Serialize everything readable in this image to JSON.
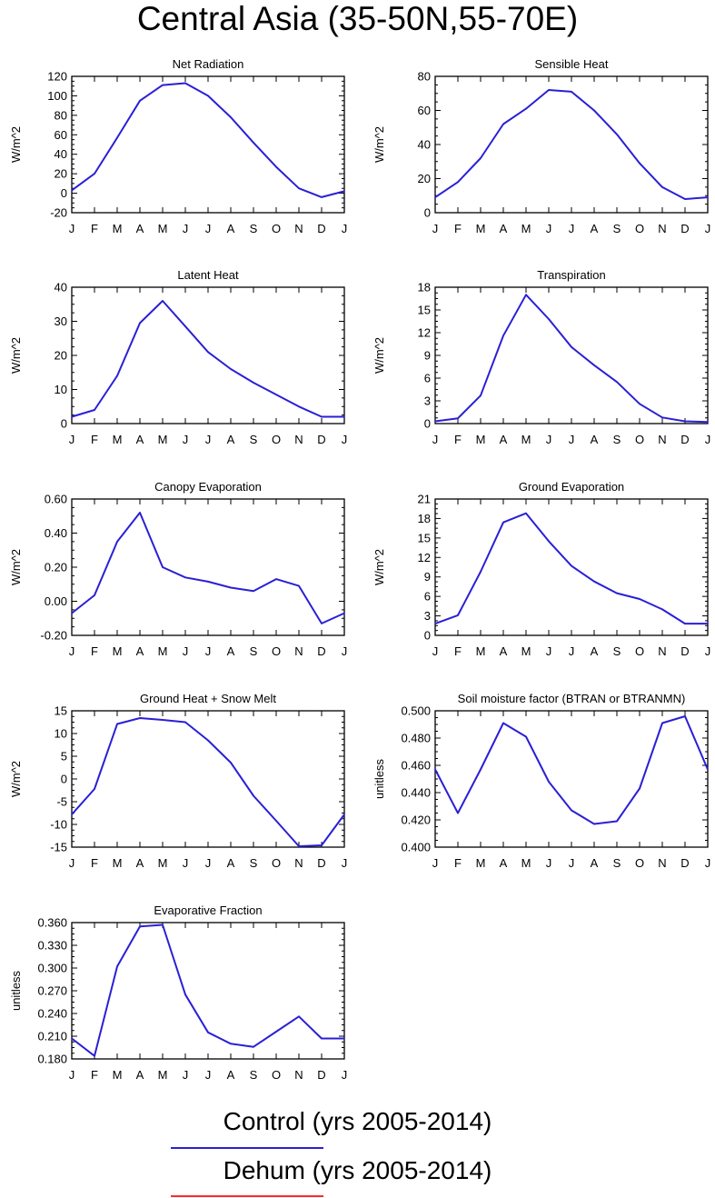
{
  "page": {
    "title": "Central Asia (35-50N,55-70E)"
  },
  "colors": {
    "control": "#2a1fd6",
    "dehum": "#ff2a2a",
    "axis": "#000000"
  },
  "legend": [
    {
      "label": "Control (yrs 2005-2014)",
      "color": "#2a1fd6"
    },
    {
      "label": "Dehum (yrs 2005-2014)",
      "color": "#ff2a2a"
    }
  ],
  "chart_data": [
    {
      "type": "line",
      "title": "Net Radiation",
      "ylabel": "W/m^2",
      "categories": [
        "J",
        "F",
        "M",
        "A",
        "M",
        "J",
        "J",
        "A",
        "S",
        "O",
        "N",
        "D",
        "J"
      ],
      "ylim": [
        -20,
        120
      ],
      "yticks": [
        -20,
        0,
        20,
        40,
        60,
        80,
        100,
        120
      ],
      "decimals": 0,
      "series": [
        {
          "name": "Control (yrs 2005-2014)",
          "color": "#2a1fd6",
          "values": [
            3,
            20,
            57,
            95,
            111,
            113,
            100,
            78,
            52,
            27,
            5,
            -4,
            2
          ]
        }
      ]
    },
    {
      "type": "line",
      "title": "Sensible Heat",
      "ylabel": "W/m^2",
      "categories": [
        "J",
        "F",
        "M",
        "A",
        "M",
        "J",
        "J",
        "A",
        "S",
        "O",
        "N",
        "D",
        "J"
      ],
      "ylim": [
        0,
        80
      ],
      "yticks": [
        0,
        20,
        40,
        60,
        80
      ],
      "decimals": 0,
      "series": [
        {
          "name": "Control (yrs 2005-2014)",
          "color": "#2a1fd6",
          "values": [
            9,
            18,
            32,
            52,
            61,
            72,
            71,
            60,
            46,
            29,
            15,
            8,
            9
          ]
        }
      ]
    },
    {
      "type": "line",
      "title": "Latent Heat",
      "ylabel": "W/m^2",
      "categories": [
        "J",
        "F",
        "M",
        "A",
        "M",
        "J",
        "J",
        "A",
        "S",
        "O",
        "N",
        "D",
        "J"
      ],
      "ylim": [
        0,
        40
      ],
      "yticks": [
        0,
        10,
        20,
        30,
        40
      ],
      "decimals": 0,
      "series": [
        {
          "name": "Control (yrs 2005-2014)",
          "color": "#2a1fd6",
          "values": [
            2,
            4,
            14,
            29.5,
            36,
            28.5,
            21,
            16,
            12,
            8.5,
            5,
            2,
            2
          ]
        }
      ]
    },
    {
      "type": "line",
      "title": "Transpiration",
      "ylabel": "W/m^2",
      "categories": [
        "J",
        "F",
        "M",
        "A",
        "M",
        "J",
        "J",
        "A",
        "S",
        "O",
        "N",
        "D",
        "J"
      ],
      "ylim": [
        0,
        18
      ],
      "yticks": [
        0,
        3,
        6,
        9,
        12,
        15,
        18
      ],
      "decimals": 0,
      "series": [
        {
          "name": "Control (yrs 2005-2014)",
          "color": "#2a1fd6",
          "values": [
            0.3,
            0.7,
            3.7,
            11.6,
            17,
            13.8,
            10.1,
            7.7,
            5.5,
            2.6,
            0.8,
            0.3,
            0.2
          ]
        }
      ]
    },
    {
      "type": "line",
      "title": "Canopy Evaporation",
      "ylabel": "W/m^2",
      "categories": [
        "J",
        "F",
        "M",
        "A",
        "M",
        "J",
        "J",
        "A",
        "S",
        "O",
        "N",
        "D",
        "J"
      ],
      "ylim": [
        -0.2,
        0.6
      ],
      "yticks": [
        -0.2,
        0,
        0.2,
        0.4,
        0.6
      ],
      "decimals": 2,
      "series": [
        {
          "name": "Control (yrs 2005-2014)",
          "color": "#2a1fd6",
          "values": [
            -0.07,
            0.035,
            0.35,
            0.52,
            0.2,
            0.14,
            0.115,
            0.08,
            0.06,
            0.13,
            0.09,
            -0.13,
            -0.07
          ]
        }
      ]
    },
    {
      "type": "line",
      "title": "Ground Evaporation",
      "ylabel": "W/m^2",
      "categories": [
        "J",
        "F",
        "M",
        "A",
        "M",
        "J",
        "J",
        "A",
        "S",
        "O",
        "N",
        "D",
        "J"
      ],
      "ylim": [
        0,
        21
      ],
      "yticks": [
        0,
        3,
        6,
        9,
        12,
        15,
        18,
        21
      ],
      "decimals": 0,
      "series": [
        {
          "name": "Control (yrs 2005-2014)",
          "color": "#2a1fd6",
          "values": [
            1.8,
            3.1,
            9.8,
            17.4,
            18.8,
            14.5,
            10.7,
            8.3,
            6.5,
            5.6,
            4,
            1.8,
            1.8
          ]
        }
      ]
    },
    {
      "type": "line",
      "title": "Ground Heat + Snow Melt",
      "ylabel": "W/m^2",
      "categories": [
        "J",
        "F",
        "M",
        "A",
        "M",
        "J",
        "J",
        "A",
        "S",
        "O",
        "N",
        "D",
        "J"
      ],
      "ylim": [
        -15,
        15
      ],
      "yticks": [
        -15,
        -10,
        -5,
        0,
        5,
        10,
        15
      ],
      "decimals": 0,
      "series": [
        {
          "name": "Control (yrs 2005-2014)",
          "color": "#2a1fd6",
          "values": [
            -7.8,
            -2.2,
            12.1,
            13.4,
            13,
            12.5,
            8.5,
            3.6,
            -3.7,
            -9.2,
            -14.8,
            -14.6,
            -7.8
          ]
        }
      ]
    },
    {
      "type": "line",
      "title": "Soil moisture factor (BTRAN or BTRANMN)",
      "ylabel": "unitless",
      "categories": [
        "J",
        "F",
        "M",
        "A",
        "M",
        "J",
        "J",
        "A",
        "S",
        "O",
        "N",
        "D",
        "J"
      ],
      "ylim": [
        0.4,
        0.5
      ],
      "yticks": [
        0.4,
        0.42,
        0.44,
        0.46,
        0.48,
        0.5
      ],
      "decimals": 3,
      "series": [
        {
          "name": "Control (yrs 2005-2014)",
          "color": "#2a1fd6",
          "values": [
            0.457,
            0.425,
            0.457,
            0.491,
            0.481,
            0.448,
            0.427,
            0.417,
            0.419,
            0.443,
            0.491,
            0.496,
            0.457
          ]
        }
      ]
    },
    {
      "type": "line",
      "title": "Evaporative Fraction",
      "ylabel": "unitless",
      "categories": [
        "J",
        "F",
        "M",
        "A",
        "M",
        "J",
        "J",
        "A",
        "S",
        "O",
        "N",
        "D",
        "J"
      ],
      "ylim": [
        0.18,
        0.36
      ],
      "yticks": [
        0.18,
        0.21,
        0.24,
        0.27,
        0.3,
        0.33,
        0.36
      ],
      "decimals": 3,
      "series": [
        {
          "name": "Control (yrs 2005-2014)",
          "color": "#2a1fd6",
          "values": [
            0.207,
            0.184,
            0.302,
            0.355,
            0.357,
            0.265,
            0.215,
            0.2,
            0.196,
            0.216,
            0.236,
            0.207,
            0.207
          ]
        }
      ]
    }
  ]
}
